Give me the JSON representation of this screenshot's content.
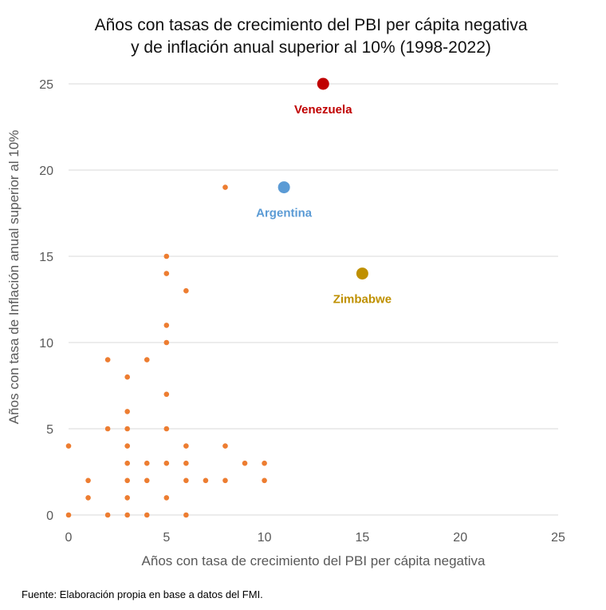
{
  "chart_data": {
    "type": "scatter",
    "title_line1": "Años con tasas de crecimiento del PBI per cápita negativa",
    "title_line2": "y de inflación anual superior al 10% (1998-2022)",
    "xlabel": "Años con tasa de crecimiento del PBI per cápita negativa",
    "ylabel": "Años con tasa de Inflación anual superior al 10%",
    "xlim": [
      0,
      25
    ],
    "ylim": [
      0,
      25
    ],
    "x_ticks": [
      "0",
      "5",
      "10",
      "15",
      "20",
      "25"
    ],
    "y_ticks": [
      "0",
      "5",
      "10",
      "15",
      "20",
      "25"
    ],
    "grid": true,
    "point_color": "#ED7D31",
    "points": [
      [
        0,
        0
      ],
      [
        0,
        4
      ],
      [
        1,
        1
      ],
      [
        1,
        2
      ],
      [
        2,
        0
      ],
      [
        2,
        5
      ],
      [
        2,
        9
      ],
      [
        3,
        0
      ],
      [
        3,
        1
      ],
      [
        3,
        2
      ],
      [
        3,
        3
      ],
      [
        3,
        4
      ],
      [
        3,
        5
      ],
      [
        3,
        6
      ],
      [
        3,
        8
      ],
      [
        4,
        0
      ],
      [
        4,
        2
      ],
      [
        4,
        3
      ],
      [
        4,
        9
      ],
      [
        5,
        1
      ],
      [
        5,
        3
      ],
      [
        5,
        5
      ],
      [
        5,
        7
      ],
      [
        5,
        10
      ],
      [
        5,
        11
      ],
      [
        5,
        14
      ],
      [
        5,
        15
      ],
      [
        6,
        0
      ],
      [
        6,
        2
      ],
      [
        6,
        3
      ],
      [
        6,
        4
      ],
      [
        6,
        13
      ],
      [
        7,
        2
      ],
      [
        8,
        2
      ],
      [
        8,
        4
      ],
      [
        8,
        19
      ],
      [
        9,
        3
      ],
      [
        10,
        2
      ],
      [
        10,
        3
      ]
    ],
    "highlights": [
      {
        "label": "Venezuela",
        "x": 13,
        "y": 25,
        "color": "#C00000"
      },
      {
        "label": "Argentina",
        "x": 11,
        "y": 19,
        "color": "#5B9BD5"
      },
      {
        "label": "Zimbabwe",
        "x": 15,
        "y": 14,
        "color": "#BF9000"
      }
    ]
  },
  "footer": "Fuente: Elaboración propia en base a datos del FMI."
}
